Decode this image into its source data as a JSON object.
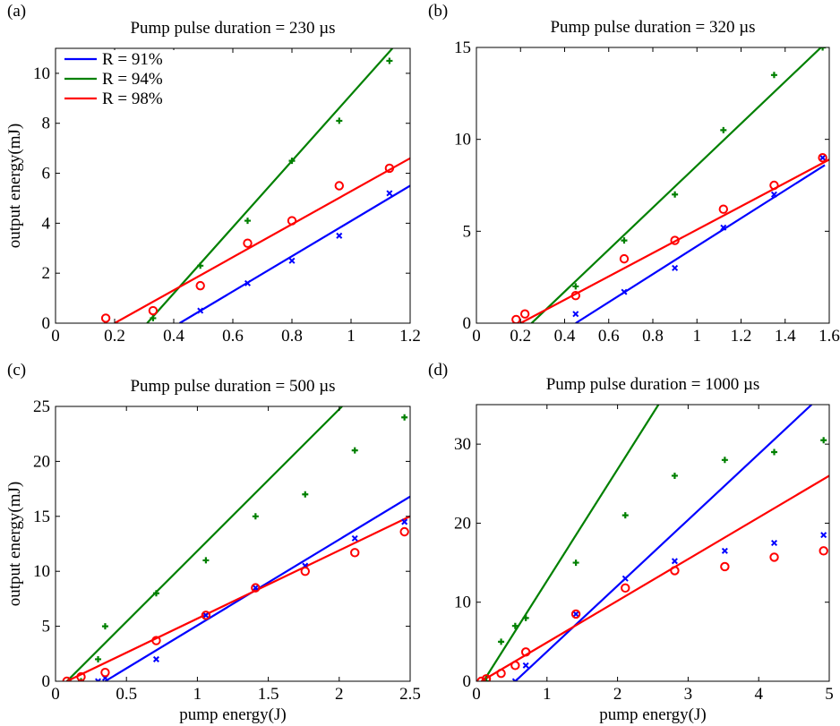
{
  "chart_data": [
    {
      "type": "scatter",
      "panel_label": "(a)",
      "title": "Pump pulse duration = 230 µs",
      "xlabel": "",
      "ylabel": "output energy(mJ)",
      "xlim": [
        0,
        1.2
      ],
      "ylim": [
        0,
        11
      ],
      "xticks": [
        0,
        0.2,
        0.4,
        0.6,
        0.8,
        1,
        1.2
      ],
      "xtick_labels": [
        "0",
        "0.2",
        "0.4",
        "0.6",
        "0.8",
        "1",
        "1.2"
      ],
      "yticks": [
        0,
        2,
        4,
        6,
        8,
        10
      ],
      "ytick_labels": [
        "0",
        "2",
        "4",
        "6",
        "8",
        "10"
      ],
      "legend": "top-left",
      "series": [
        {
          "name": "R = 91%",
          "color": "#0000ff",
          "marker": "x",
          "x": [
            0.49,
            0.65,
            0.8,
            0.96,
            1.13
          ],
          "y": [
            0.5,
            1.6,
            2.5,
            3.5,
            5.2
          ],
          "fit": [
            [
              0.42,
              0
            ],
            [
              1.2,
              5.5
            ]
          ]
        },
        {
          "name": "R = 94%",
          "color": "#008000",
          "marker": "+",
          "x": [
            0.33,
            0.49,
            0.65,
            0.8,
            0.96,
            1.13
          ],
          "y": [
            0.2,
            2.3,
            4.1,
            6.5,
            8.1,
            10.5
          ],
          "fit": [
            [
              0.31,
              0
            ],
            [
              1.14,
              11
            ]
          ]
        },
        {
          "name": "R = 98%",
          "color": "#ff0000",
          "marker": "o",
          "x": [
            0.17,
            0.33,
            0.49,
            0.65,
            0.8,
            0.96,
            1.13
          ],
          "y": [
            0.2,
            0.5,
            1.5,
            3.2,
            4.1,
            5.5,
            6.2
          ],
          "fit": [
            [
              0.2,
              0
            ],
            [
              1.2,
              6.6
            ]
          ]
        }
      ]
    },
    {
      "type": "scatter",
      "panel_label": "(b)",
      "title": "Pump pulse duration = 320 µs",
      "xlabel": "",
      "ylabel": "",
      "xlim": [
        0,
        1.6
      ],
      "ylim": [
        0,
        15
      ],
      "xticks": [
        0,
        0.2,
        0.4,
        0.6,
        0.8,
        1,
        1.2,
        1.4,
        1.6
      ],
      "xtick_labels": [
        "0",
        "0.2",
        "0.4",
        "0.6",
        "0.8",
        "1",
        "1.2",
        "1.4",
        "1.6"
      ],
      "yticks": [
        0,
        5,
        10,
        15
      ],
      "ytick_labels": [
        "0",
        "5",
        "10",
        "15"
      ],
      "series": [
        {
          "color": "#0000ff",
          "marker": "x",
          "x": [
            0.45,
            0.67,
            0.9,
            1.12,
            1.35,
            1.57
          ],
          "y": [
            0.5,
            1.7,
            3.0,
            5.2,
            7.0,
            9.0
          ],
          "fit": [
            [
              0.45,
              0
            ],
            [
              1.58,
              8.6
            ]
          ]
        },
        {
          "color": "#008000",
          "marker": "+",
          "x": [
            0.45,
            0.67,
            0.9,
            1.12,
            1.35,
            1.57
          ],
          "y": [
            2.0,
            4.5,
            7.0,
            10.5,
            13.5,
            15.0
          ],
          "fit": [
            [
              0.25,
              0
            ],
            [
              1.58,
              15.2
            ]
          ]
        },
        {
          "color": "#ff0000",
          "marker": "o",
          "x": [
            0.18,
            0.22,
            0.45,
            0.67,
            0.9,
            1.12,
            1.35,
            1.57
          ],
          "y": [
            0.2,
            0.5,
            1.5,
            3.5,
            4.5,
            6.2,
            7.5,
            9.0
          ],
          "fit": [
            [
              0.2,
              0
            ],
            [
              1.6,
              8.9
            ]
          ]
        }
      ]
    },
    {
      "type": "scatter",
      "panel_label": "(c)",
      "title": "Pump pulse duration = 500 µs",
      "xlabel": "pump energy(J)",
      "ylabel": "output energy(mJ)",
      "xlim": [
        0,
        2.5
      ],
      "ylim": [
        0,
        25
      ],
      "xticks": [
        0,
        0.5,
        1,
        1.5,
        2,
        2.5
      ],
      "xtick_labels": [
        "0",
        "0.5",
        "1",
        "1.5",
        "2",
        "2.5"
      ],
      "yticks": [
        0,
        5,
        10,
        15,
        20,
        25
      ],
      "ytick_labels": [
        "0",
        "5",
        "10",
        "15",
        "20",
        "25"
      ],
      "series": [
        {
          "color": "#0000ff",
          "marker": "x",
          "x": [
            0.3,
            0.35,
            0.71,
            1.06,
            1.41,
            1.76,
            2.11,
            2.46
          ],
          "y": [
            0.0,
            0.3,
            2.0,
            6.0,
            8.5,
            10.5,
            13.0,
            14.5
          ],
          "fit": [
            [
              0.35,
              0
            ],
            [
              2.5,
              16.8
            ]
          ]
        },
        {
          "color": "#008000",
          "marker": "+",
          "x": [
            0.18,
            0.3,
            0.35,
            0.71,
            1.06,
            1.41,
            1.76,
            2.11,
            2.46
          ],
          "y": [
            0.0,
            2.0,
            5.0,
            8.0,
            11.0,
            15.0,
            17.0,
            21.0,
            24.0
          ],
          "fit": [
            [
              0.08,
              0
            ],
            [
              2.02,
              25
            ]
          ]
        },
        {
          "color": "#ff0000",
          "marker": "o",
          "x": [
            0.08,
            0.18,
            0.35,
            0.71,
            1.06,
            1.41,
            1.76,
            2.11,
            2.46
          ],
          "y": [
            0.0,
            0.4,
            0.8,
            3.7,
            6.0,
            8.5,
            10.0,
            11.7,
            13.6
          ],
          "fit": [
            [
              0.08,
              0
            ],
            [
              2.5,
              15
            ]
          ]
        }
      ]
    },
    {
      "type": "scatter",
      "panel_label": "(d)",
      "title": "Pump pulse duration = 1000 µs",
      "xlabel": "pump energy(J)",
      "ylabel": "",
      "xlim": [
        0,
        5
      ],
      "ylim": [
        0,
        35
      ],
      "xticks": [
        0,
        1,
        2,
        3,
        4,
        5
      ],
      "xtick_labels": [
        "0",
        "1",
        "2",
        "3",
        "4",
        "5"
      ],
      "yticks": [
        0,
        10,
        20,
        30
      ],
      "ytick_labels": [
        "0",
        "10",
        "20",
        "30"
      ],
      "series": [
        {
          "color": "#0000ff",
          "marker": "x",
          "x": [
            0.55,
            0.7,
            1.41,
            2.11,
            2.81,
            3.52,
            4.22,
            4.92
          ],
          "y": [
            0.0,
            2.0,
            8.5,
            13.0,
            15.2,
            16.5,
            17.5,
            18.5
          ],
          "fit": [
            [
              0.55,
              0
            ],
            [
              4.75,
              35
            ]
          ]
        },
        {
          "color": "#008000",
          "marker": "+",
          "x": [
            0.14,
            0.35,
            0.55,
            0.7,
            1.41,
            2.11,
            2.81,
            3.52,
            4.22,
            4.92
          ],
          "y": [
            0.0,
            5.0,
            7.0,
            8.0,
            15.0,
            21.0,
            26.0,
            28.0,
            29.0,
            30.5
          ],
          "fit": [
            [
              0.1,
              0
            ],
            [
              2.58,
              35
            ]
          ]
        },
        {
          "color": "#ff0000",
          "marker": "o",
          "x": [
            0.07,
            0.14,
            0.35,
            0.55,
            0.7,
            1.41,
            2.11,
            2.81,
            3.52,
            4.22,
            4.92
          ],
          "y": [
            0.0,
            0.3,
            1.0,
            2.0,
            3.7,
            8.5,
            11.8,
            14.0,
            14.5,
            15.7,
            16.5
          ],
          "fit": [
            [
              0.07,
              0
            ],
            [
              5,
              26
            ]
          ]
        }
      ]
    }
  ]
}
